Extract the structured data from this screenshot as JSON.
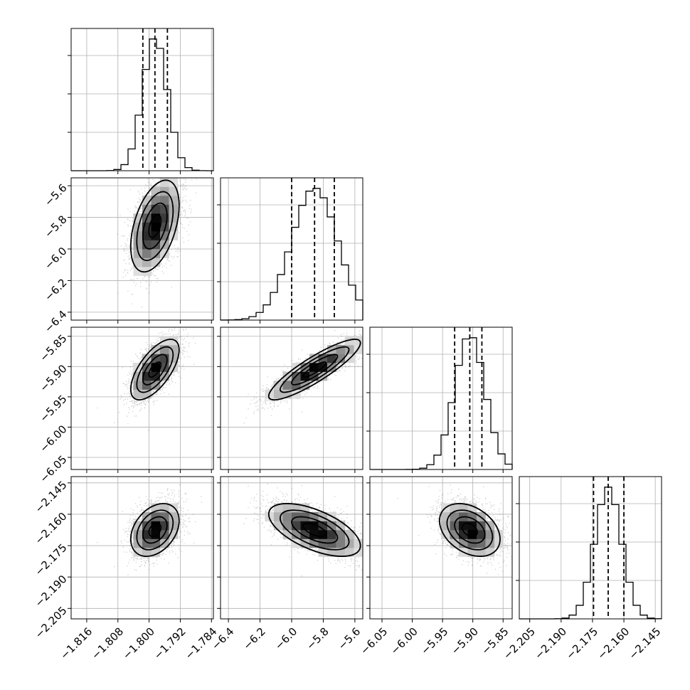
{
  "chart_data": {
    "type": "corner",
    "title": "",
    "grid": true,
    "parameters": [
      {
        "mean": -1.7985,
        "sd": 0.0031,
        "range": [
          -1.82,
          -1.7835
        ],
        "ticks": [
          -1.816,
          -1.808,
          -1.8,
          -1.792,
          -1.784
        ],
        "tick_labels": [
          "−1.816",
          "−1.808",
          "−1.800",
          "−1.792",
          "−1.784"
        ],
        "quantiles": [
          -1.8016,
          -1.7985,
          -1.7953
        ]
      },
      {
        "mean": -5.855,
        "sd": 0.145,
        "range": [
          -6.45,
          -5.55
        ],
        "ticks": [
          -6.4,
          -6.2,
          -6.0,
          -5.8,
          -5.6
        ],
        "tick_labels": [
          "−6.4",
          "−6.2",
          "−6.0",
          "−5.8",
          "−5.6"
        ],
        "quantiles": [
          -6.0,
          -5.855,
          -5.73
        ]
      },
      {
        "mean": -5.905,
        "sd": 0.025,
        "range": [
          -6.07,
          -5.835
        ],
        "ticks": [
          -6.05,
          -6.0,
          -5.95,
          -5.9,
          -5.85
        ],
        "tick_labels": [
          "−6.05",
          "−6.00",
          "−5.95",
          "−5.90",
          "−5.85"
        ],
        "quantiles": [
          -5.93,
          -5.905,
          -5.885
        ]
      },
      {
        "mean": -2.1675,
        "sd": 0.0063,
        "range": [
          -2.21,
          -2.142
        ],
        "ticks": [
          -2.205,
          -2.19,
          -2.175,
          -2.16,
          -2.145
        ],
        "tick_labels": [
          "−2.205",
          "−2.190",
          "−2.175",
          "−2.160",
          "−2.145"
        ],
        "quantiles": [
          -2.1745,
          -2.1675,
          -2.16
        ]
      }
    ],
    "pairs": [
      {
        "row": 1,
        "col": 0,
        "rho": 0.45
      },
      {
        "row": 2,
        "col": 0,
        "rho": 0.65
      },
      {
        "row": 2,
        "col": 1,
        "rho": 0.88
      },
      {
        "row": 3,
        "col": 0,
        "rho": 0.35
      },
      {
        "row": 3,
        "col": 1,
        "rho": -0.6
      },
      {
        "row": 3,
        "col": 2,
        "rho": -0.35
      }
    ],
    "contour_levels": [
      0.5,
      1.0,
      1.5,
      2.0
    ],
    "colors": {
      "points": "#000000",
      "contour": "#000000"
    }
  }
}
